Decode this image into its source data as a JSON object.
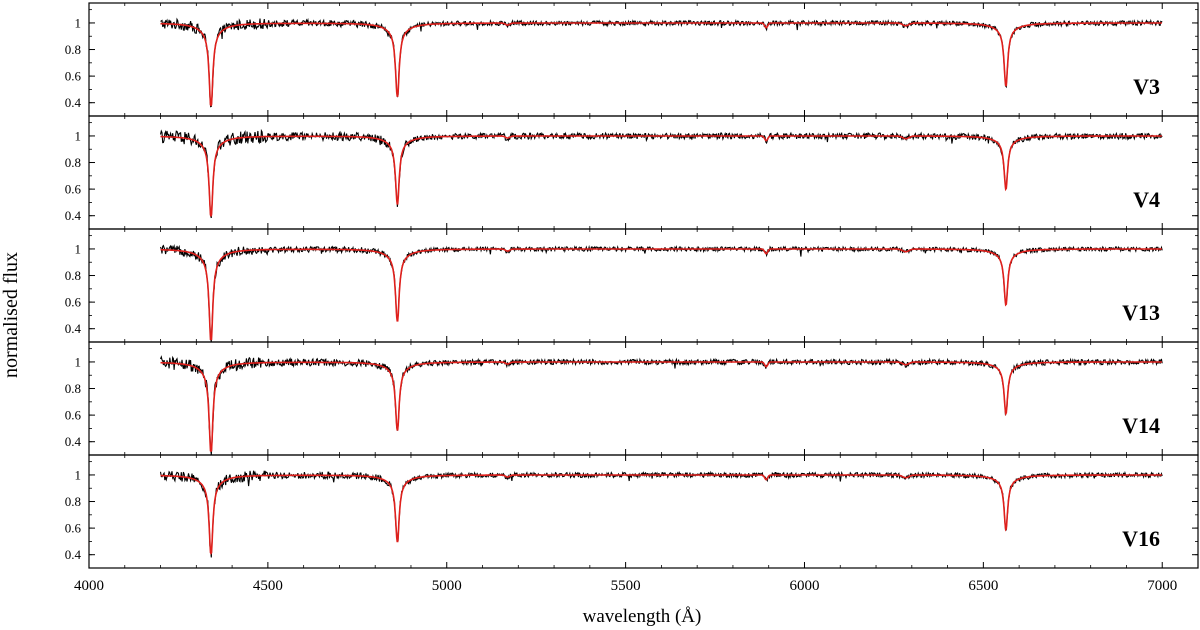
{
  "chart_data": {
    "type": "line",
    "xlabel": "wavelength (Å)",
    "ylabel": "normalised flux",
    "xlim": [
      4000,
      7100
    ],
    "xticks": [
      4000,
      4500,
      5000,
      5500,
      6000,
      6500,
      7000
    ],
    "xtick_labels": [
      "4000",
      "4500",
      "5000",
      "5500",
      "6000",
      "6500",
      "7000"
    ],
    "ylim": [
      0.3,
      1.15
    ],
    "yticks": [
      0.4,
      0.6,
      0.8,
      1.0
    ],
    "ytick_labels": [
      "0.4",
      "0.6",
      "0.8",
      "1"
    ],
    "series_colors": {
      "observed": "#000000",
      "model": "#e0201c"
    },
    "panels": [
      {
        "label": "V3",
        "lines": [
          {
            "center": 4341,
            "depth": 0.58
          },
          {
            "center": 4862,
            "depth": 0.51
          },
          {
            "center": 6563,
            "depth": 0.43
          }
        ],
        "noise": 0.018
      },
      {
        "label": "V4",
        "lines": [
          {
            "center": 4341,
            "depth": 0.56
          },
          {
            "center": 4862,
            "depth": 0.47
          },
          {
            "center": 6563,
            "depth": 0.36
          }
        ],
        "noise": 0.022
      },
      {
        "label": "V13",
        "lines": [
          {
            "center": 4341,
            "depth": 0.64
          },
          {
            "center": 4862,
            "depth": 0.5
          },
          {
            "center": 6563,
            "depth": 0.38
          }
        ],
        "noise": 0.016
      },
      {
        "label": "V14",
        "lines": [
          {
            "center": 4341,
            "depth": 0.63
          },
          {
            "center": 4862,
            "depth": 0.47
          },
          {
            "center": 6563,
            "depth": 0.35
          }
        ],
        "noise": 0.02
      },
      {
        "label": "V16",
        "lines": [
          {
            "center": 4341,
            "depth": 0.55
          },
          {
            "center": 4862,
            "depth": 0.46
          },
          {
            "center": 6563,
            "depth": 0.37
          }
        ],
        "noise": 0.018
      }
    ],
    "spectrum_range": [
      4200,
      7000
    ],
    "grid": false,
    "legend": "none"
  }
}
